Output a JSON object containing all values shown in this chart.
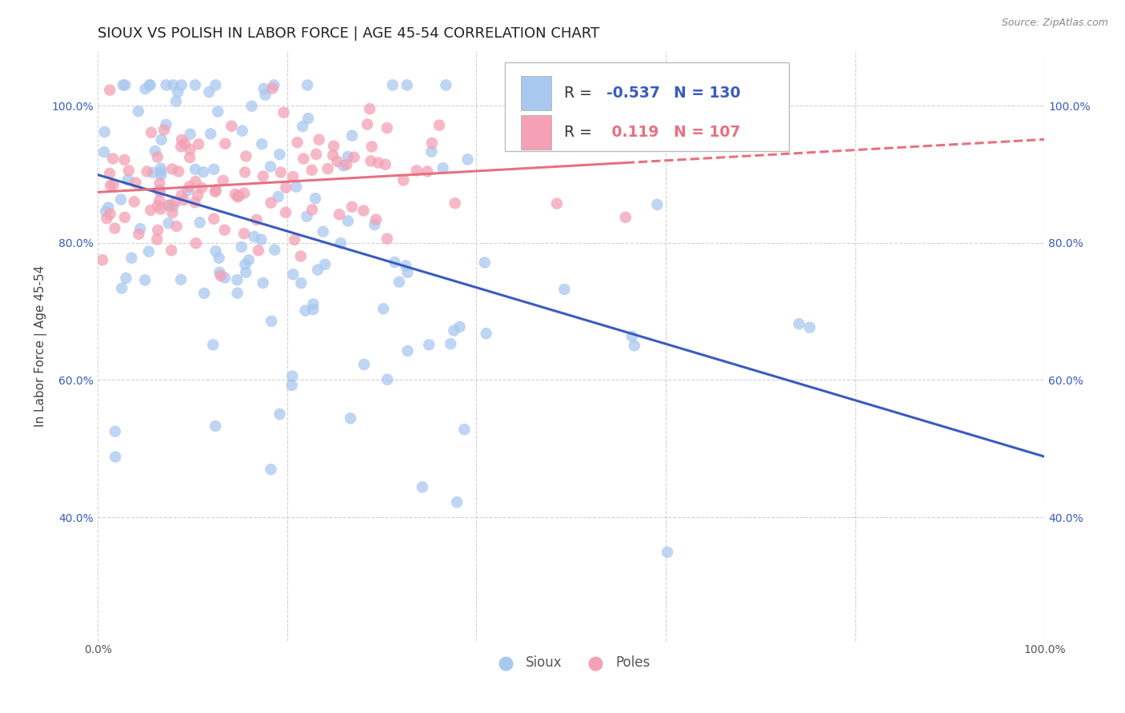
{
  "title": "SIOUX VS POLISH IN LABOR FORCE | AGE 45-54 CORRELATION CHART",
  "source": "Source: ZipAtlas.com",
  "ylabel": "In Labor Force | Age 45-54",
  "xlim": [
    0.0,
    1.0
  ],
  "ylim": [
    0.22,
    1.08
  ],
  "y_ticks": [
    0.4,
    0.6,
    0.8,
    1.0
  ],
  "y_tick_labels": [
    "40.0%",
    "60.0%",
    "80.0%",
    "100.0%"
  ],
  "sioux_color": "#a8c8f0",
  "poles_color": "#f4a0b5",
  "sioux_R": -0.537,
  "sioux_N": 130,
  "poles_R": 0.119,
  "poles_N": 107,
  "sioux_line_color": "#3a5bbf",
  "poles_line_color": "#e87080",
  "background_color": "#ffffff",
  "grid_color": "#cccccc",
  "title_fontsize": 13,
  "label_fontsize": 11,
  "tick_fontsize": 10,
  "legend_fontsize": 13
}
